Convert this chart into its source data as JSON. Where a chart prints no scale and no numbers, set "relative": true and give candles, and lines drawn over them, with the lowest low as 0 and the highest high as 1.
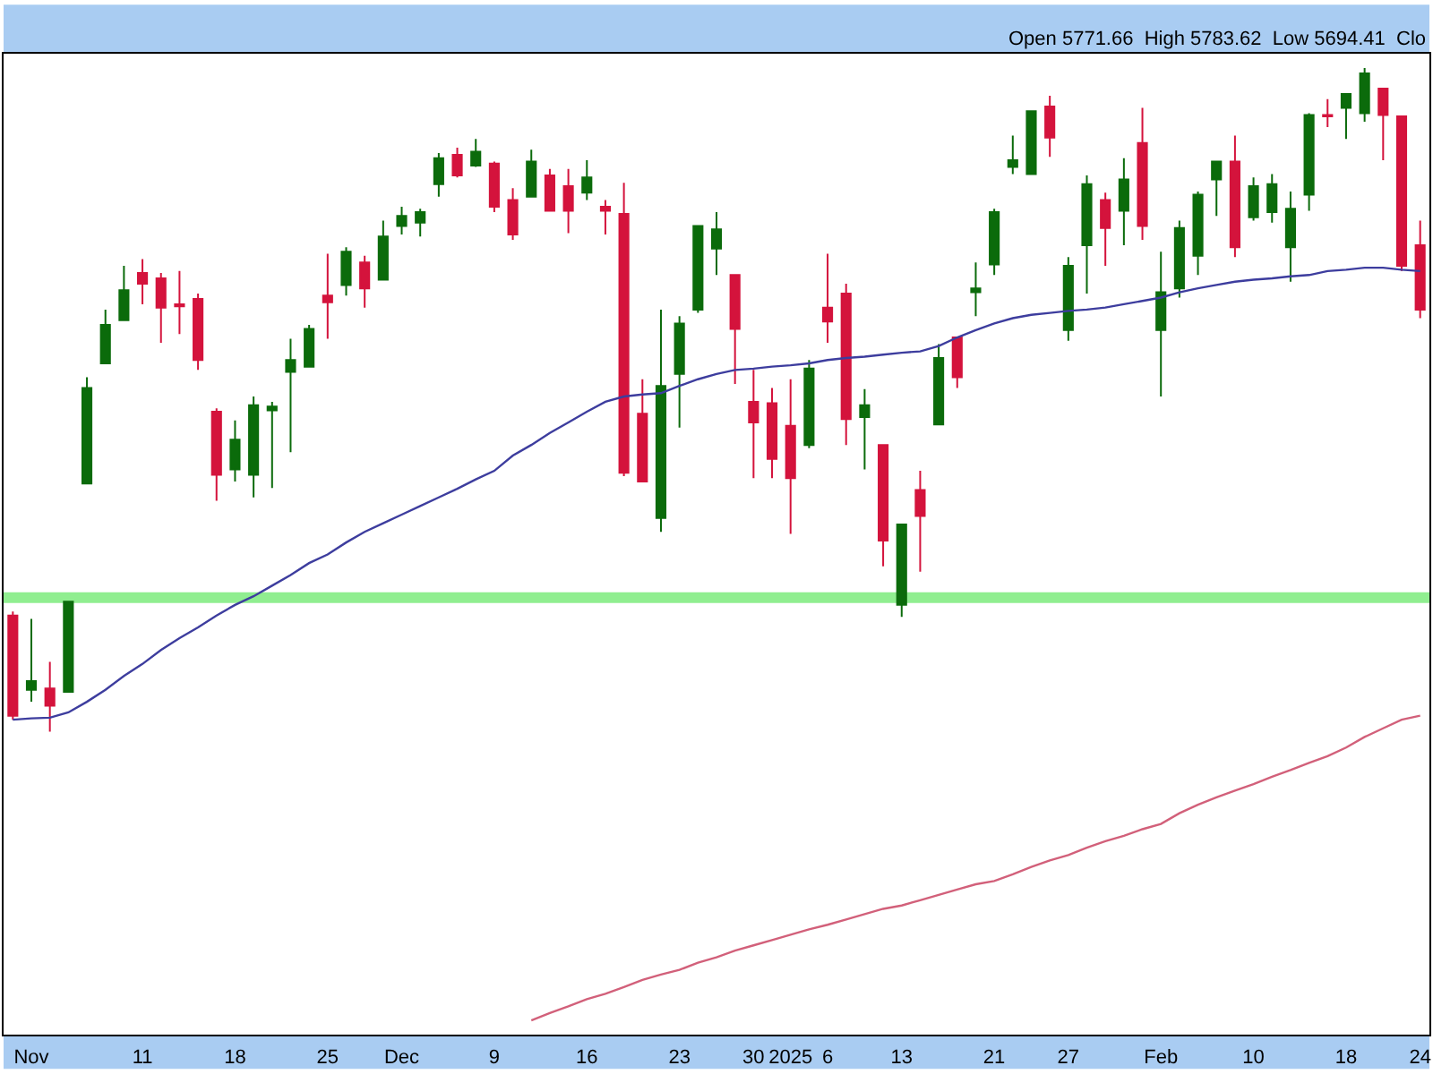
{
  "chart_data": {
    "type": "candlestick",
    "relative": true,
    "annotations": [
      "Open 5771.66  High 5783.62  Low 5694.41  Clo"
    ],
    "categories": [
      null,
      "Nov",
      null,
      null,
      null,
      null,
      null,
      "11",
      null,
      null,
      null,
      null,
      "18",
      null,
      null,
      null,
      null,
      "25",
      null,
      null,
      null,
      "Dec",
      null,
      null,
      null,
      null,
      "9",
      null,
      null,
      null,
      null,
      "16",
      null,
      null,
      null,
      null,
      "23",
      null,
      null,
      null,
      "30",
      null,
      "2025",
      null,
      "6",
      null,
      null,
      null,
      "13",
      null,
      null,
      null,
      null,
      "21",
      null,
      null,
      null,
      "27",
      null,
      null,
      null,
      null,
      "Feb",
      null,
      null,
      null,
      null,
      "10",
      null,
      null,
      null,
      null,
      "18",
      null,
      null,
      null,
      "24"
    ],
    "ohlc": [
      [
        0.175,
        0.181,
        0.018,
        0.024
      ],
      [
        0.063,
        0.17,
        0.045,
        0.076
      ],
      [
        0.065,
        0.105,
        0,
        0.039
      ],
      [
        0.06,
        0.196,
        0.06,
        0.196
      ],
      [
        0.374,
        0.534,
        0.374,
        0.518
      ],
      [
        0.555,
        0.636,
        0.555,
        0.613
      ],
      [
        0.62,
        0.702,
        0.62,
        0.665
      ],
      [
        0.691,
        0.712,
        0.644,
        0.675
      ],
      [
        0.683,
        0.691,
        0.586,
        0.639
      ],
      [
        0.644,
        0.694,
        0.599,
        0.641
      ],
      [
        0.652,
        0.66,
        0.545,
        0.56
      ],
      [
        0.482,
        0.487,
        0.348,
        0.387
      ],
      [
        0.395,
        0.469,
        0.377,
        0.44
      ],
      [
        0.387,
        0.505,
        0.353,
        0.492
      ],
      [
        0.484,
        0.497,
        0.367,
        0.49
      ],
      [
        0.542,
        0.592,
        0.421,
        0.56
      ],
      [
        0.55,
        0.613,
        0.55,
        0.607
      ],
      [
        0.657,
        0.72,
        0.592,
        0.647
      ],
      [
        0.673,
        0.73,
        0.657,
        0.723
      ],
      [
        0.707,
        0.717,
        0.639,
        0.668
      ],
      [
        0.681,
        0.77,
        0.681,
        0.746
      ],
      [
        0.762,
        0.791,
        0.749,
        0.777
      ],
      [
        0.767,
        0.788,
        0.746,
        0.783
      ],
      [
        0.825,
        0.872,
        0.806,
        0.864
      ],
      [
        0.869,
        0.88,
        0.835,
        0.838
      ],
      [
        0.853,
        0.893,
        0.851,
        0.874
      ],
      [
        0.856,
        0.859,
        0.783,
        0.791
      ],
      [
        0.801,
        0.819,
        0.741,
        0.749
      ],
      [
        0.806,
        0.877,
        0.806,
        0.859
      ],
      [
        0.838,
        0.848,
        0.785,
        0.785
      ],
      [
        0.822,
        0.848,
        0.751,
        0.785
      ],
      [
        0.812,
        0.861,
        0.801,
        0.835
      ],
      [
        0.791,
        0.801,
        0.749,
        0.785
      ],
      [
        0.78,
        0.827,
        0.385,
        0.39
      ],
      [
        0.479,
        0.531,
        0.377,
        0.377
      ],
      [
        0.322,
        0.636,
        0.301,
        0.521
      ],
      [
        0.539,
        0.626,
        0.458,
        0.615
      ],
      [
        0.636,
        0.762,
        0.631,
        0.762
      ],
      [
        0.728,
        0.783,
        0.688,
        0.757
      ],
      [
        0.688,
        0.688,
        0.524,
        0.607
      ],
      [
        0.497,
        0.545,
        0.382,
        0.466
      ],
      [
        0.495,
        0.518,
        0.382,
        0.411
      ],
      [
        0.461,
        0.531,
        0.298,
        0.382
      ],
      [
        0.432,
        0.56,
        0.427,
        0.547
      ],
      [
        0.639,
        0.72,
        0.586,
        0.618
      ],
      [
        0.66,
        0.675,
        0.432,
        0.471
      ],
      [
        0.474,
        0.516,
        0.395,
        0.492
      ],
      [
        0.432,
        0.432,
        0.249,
        0.288
      ],
      [
        0.191,
        0.312,
        0.173,
        0.312
      ],
      [
        0.364,
        0.393,
        0.241,
        0.325
      ],
      [
        0.463,
        0.584,
        0.463,
        0.563
      ],
      [
        0.594,
        0.594,
        0.518,
        0.534
      ],
      [
        0.662,
        0.707,
        0.626,
        0.668
      ],
      [
        0.704,
        0.788,
        0.688,
        0.783
      ],
      [
        0.851,
        0.898,
        0.84,
        0.861
      ],
      [
        0.84,
        0.935,
        0.84,
        0.935
      ],
      [
        0.942,
        0.958,
        0.866,
        0.895
      ],
      [
        0.605,
        0.715,
        0.589,
        0.702
      ],
      [
        0.733,
        0.838,
        0.66,
        0.825
      ],
      [
        0.801,
        0.812,
        0.702,
        0.759
      ],
      [
        0.785,
        0.864,
        0.733,
        0.832
      ],
      [
        0.887,
        0.94,
        0.741,
        0.762
      ],
      [
        0.605,
        0.723,
        0.505,
        0.662
      ],
      [
        0.668,
        0.77,
        0.654,
        0.759
      ],
      [
        0.717,
        0.814,
        0.688,
        0.809
      ],
      [
        0.832,
        0.859,
        0.777,
        0.859
      ],
      [
        0.859,
        0.898,
        0.715,
        0.73
      ],
      [
        0.775,
        0.835,
        0.77,
        0.822
      ],
      [
        0.783,
        0.84,
        0.767,
        0.825
      ],
      [
        0.73,
        0.814,
        0.678,
        0.788
      ],
      [
        0.809,
        0.932,
        0.785,
        0.929
      ],
      [
        0.929,
        0.953,
        0.911,
        0.927
      ],
      [
        0.94,
        0.961,
        0.893,
        0.961
      ],
      [
        0.932,
        1,
        0.919,
        0.992
      ],
      [
        0.969,
        0.969,
        0.861,
        0.929
      ],
      [
        0.927,
        0.927,
        0.694,
        0.702
      ],
      [
        0.733,
        0.77,
        0.623,
        0.636
      ]
    ],
    "colors": [
      "#d4133c",
      "#0b6b0b",
      "#d4133c",
      "#0b6b0b",
      "#0b6b0b",
      "#0b6b0b",
      "#0b6b0b",
      "#d4133c",
      "#d4133c",
      "#d4133c",
      "#d4133c",
      "#d4133c",
      "#0b6b0b",
      "#0b6b0b",
      "#0b6b0b",
      "#0b6b0b",
      "#0b6b0b",
      "#d4133c",
      "#0b6b0b",
      "#d4133c",
      "#0b6b0b",
      "#0b6b0b",
      "#0b6b0b",
      "#0b6b0b",
      "#d4133c",
      "#0b6b0b",
      "#d4133c",
      "#d4133c",
      "#0b6b0b",
      "#d4133c",
      "#d4133c",
      "#0b6b0b",
      "#d4133c",
      "#d4133c",
      "#d4133c",
      "#0b6b0b",
      "#0b6b0b",
      "#0b6b0b",
      "#0b6b0b",
      "#d4133c",
      "#d4133c",
      "#d4133c",
      "#d4133c",
      "#0b6b0b",
      "#d4133c",
      "#d4133c",
      "#0b6b0b",
      "#d4133c",
      "#0b6b0b",
      "#d4133c",
      "#0b6b0b",
      "#d4133c",
      "#0b6b0b",
      "#0b6b0b",
      "#0b6b0b",
      "#0b6b0b",
      "#d4133c",
      "#0b6b0b",
      "#0b6b0b",
      "#d4133c",
      "#0b6b0b",
      "#d4133c",
      "#0b6b0b",
      "#0b6b0b",
      "#0b6b0b",
      "#0b6b0b",
      "#d4133c",
      "#0b6b0b",
      "#0b6b0b",
      "#0b6b0b",
      "#0b6b0b",
      "#d4133c",
      "#0b6b0b",
      "#0b6b0b",
      "#d4133c",
      "#d4133c",
      "#d4133c"
    ],
    "series": [
      {
        "type": "line",
        "color": "#3d3d9e",
        "values": [
          0.018,
          0.02,
          0.021,
          0.029,
          0.045,
          0.063,
          0.084,
          0.102,
          0.123,
          0.141,
          0.157,
          0.175,
          0.191,
          0.204,
          0.22,
          0.236,
          0.254,
          0.267,
          0.285,
          0.301,
          0.314,
          0.327,
          0.34,
          0.353,
          0.366,
          0.38,
          0.393,
          0.416,
          0.432,
          0.45,
          0.466,
          0.482,
          0.497,
          0.505,
          0.508,
          0.51,
          0.521,
          0.531,
          0.539,
          0.545,
          0.547,
          0.55,
          0.552,
          0.555,
          0.56,
          0.563,
          0.565,
          0.568,
          0.571,
          0.573,
          0.581,
          0.594,
          0.605,
          0.615,
          0.623,
          0.628,
          0.631,
          0.634,
          0.636,
          0.639,
          0.644,
          0.649,
          0.654,
          0.662,
          0.668,
          0.673,
          0.678,
          0.681,
          0.683,
          0.686,
          0.688,
          0.694,
          0.696,
          0.699,
          0.699,
          0.696,
          0.694
        ]
      },
      {
        "type": "line",
        "color": "#d2607a",
        "values": [
          null,
          null,
          null,
          null,
          null,
          null,
          null,
          null,
          null,
          null,
          null,
          null,
          null,
          null,
          null,
          null,
          null,
          null,
          null,
          null,
          null,
          null,
          null,
          null,
          null,
          null,
          null,
          null,
          -0.435,
          -0.424,
          -0.414,
          -0.403,
          -0.395,
          -0.385,
          -0.374,
          -0.366,
          -0.359,
          -0.348,
          -0.34,
          -0.33,
          -0.322,
          -0.314,
          -0.306,
          -0.298,
          -0.291,
          -0.283,
          -0.275,
          -0.267,
          -0.262,
          -0.254,
          -0.246,
          -0.238,
          -0.23,
          -0.225,
          -0.215,
          -0.204,
          -0.194,
          -0.186,
          -0.175,
          -0.165,
          -0.157,
          -0.147,
          -0.139,
          -0.123,
          -0.11,
          -0.099,
          -0.089,
          -0.079,
          -0.068,
          -0.058,
          -0.047,
          -0.037,
          -0.024,
          -0.008,
          0.005,
          0.018,
          0.024
        ]
      }
    ],
    "ref_lines": [
      {
        "axis": "y",
        "value": 0.202,
        "color": "#90ee90"
      }
    ]
  }
}
